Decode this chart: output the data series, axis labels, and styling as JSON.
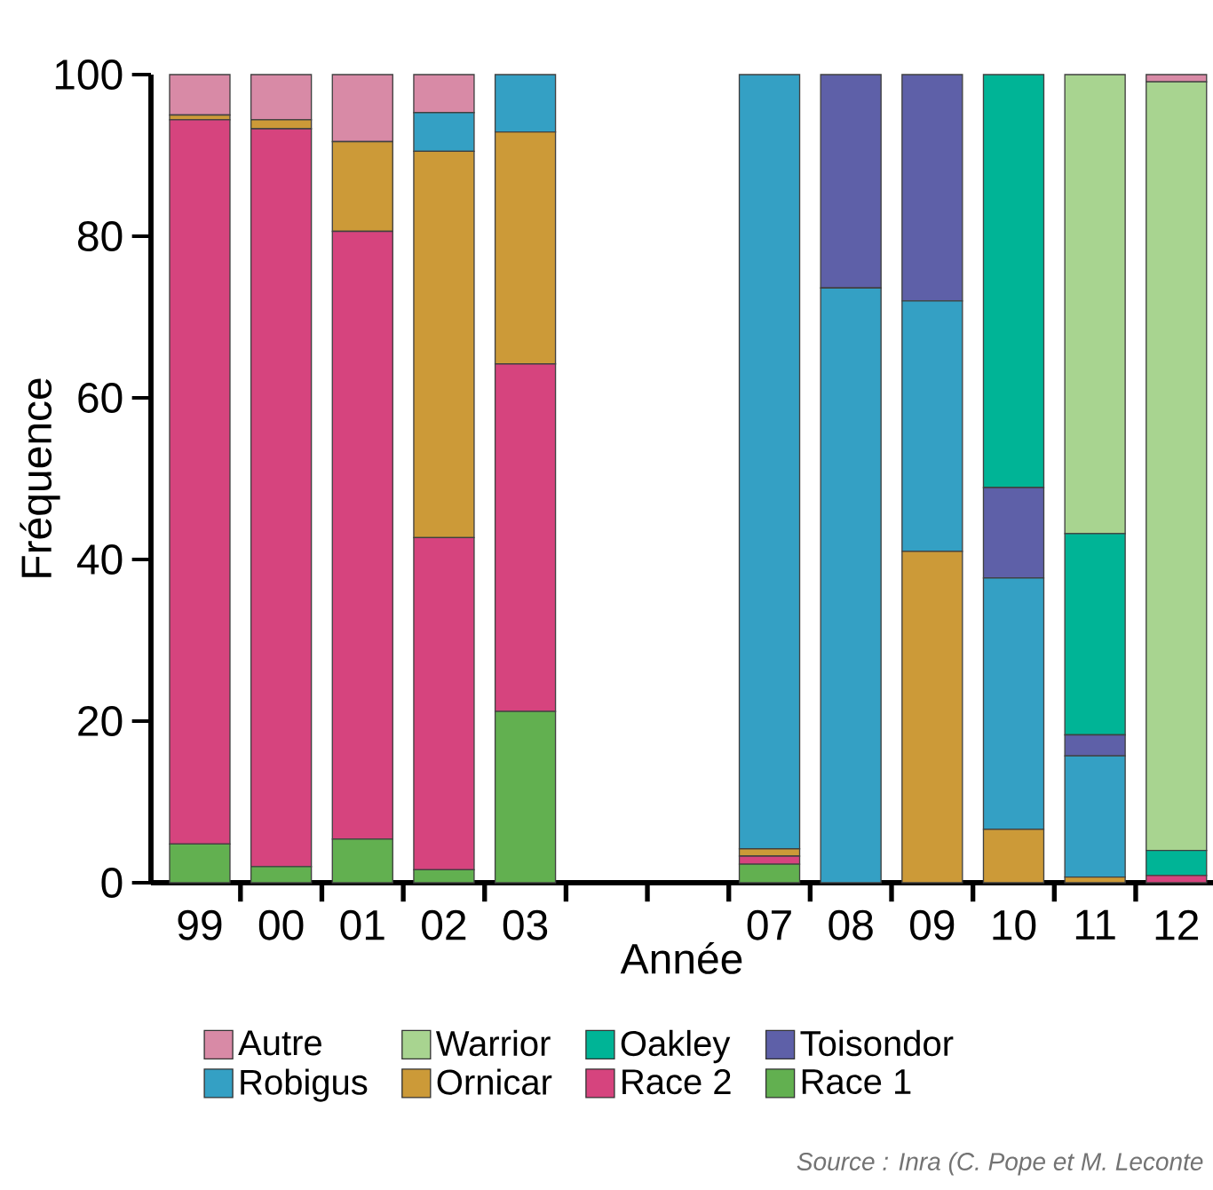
{
  "chart_data": {
    "type": "bar",
    "stacked": true,
    "xlabel": "Année",
    "ylabel": "Fréquence",
    "categories": [
      "99",
      "00",
      "01",
      "02",
      "03",
      null,
      null,
      "07",
      "08",
      "09",
      "10",
      "11",
      "12"
    ],
    "series": [
      {
        "name": "Race 1",
        "color": "#62b050",
        "values": [
          4.8,
          2.0,
          5.4,
          1.6,
          21.2,
          null,
          null,
          2.3,
          0,
          0,
          0,
          0,
          0
        ]
      },
      {
        "name": "Race 2",
        "color": "#d6447e",
        "values": [
          89.6,
          91.3,
          75.2,
          41.1,
          43.0,
          null,
          null,
          1.0,
          0,
          0,
          0,
          0,
          0.9
        ]
      },
      {
        "name": "Ornicar",
        "color": "#cc9a38",
        "values": [
          0.6,
          1.1,
          11.1,
          47.8,
          28.7,
          null,
          null,
          0.9,
          0,
          41.0,
          6.6,
          0.7,
          0
        ]
      },
      {
        "name": "Robigus",
        "color": "#34a0c4",
        "values": [
          0,
          0,
          0,
          4.8,
          7.1,
          null,
          null,
          95.8,
          73.6,
          31.0,
          31.1,
          15.0,
          0
        ]
      },
      {
        "name": "Toisondor",
        "color": "#5e60a8",
        "values": [
          0,
          0,
          0,
          0,
          0,
          null,
          null,
          0,
          26.4,
          28.0,
          11.2,
          2.6,
          0
        ]
      },
      {
        "name": "Oakley",
        "color": "#00b496",
        "values": [
          0,
          0,
          0,
          0,
          0,
          null,
          null,
          0,
          0,
          0,
          51.1,
          24.9,
          3.1
        ]
      },
      {
        "name": "Warrior",
        "color": "#a8d490",
        "values": [
          0,
          0,
          0,
          0,
          0,
          null,
          null,
          0,
          0,
          0,
          0,
          56.8,
          95.1
        ]
      },
      {
        "name": "Autre",
        "color": "#d88aa6",
        "values": [
          5.0,
          5.6,
          8.3,
          4.7,
          0,
          null,
          null,
          0,
          0,
          0,
          0,
          0,
          0.9
        ]
      }
    ],
    "ylim": [
      0,
      100
    ],
    "yticks": [
      0,
      20,
      40,
      60,
      80,
      100
    ],
    "grid": false,
    "legend": "bottom",
    "annotations": [
      "Source : Inra (C. Pope et M. Leconte"
    ]
  }
}
